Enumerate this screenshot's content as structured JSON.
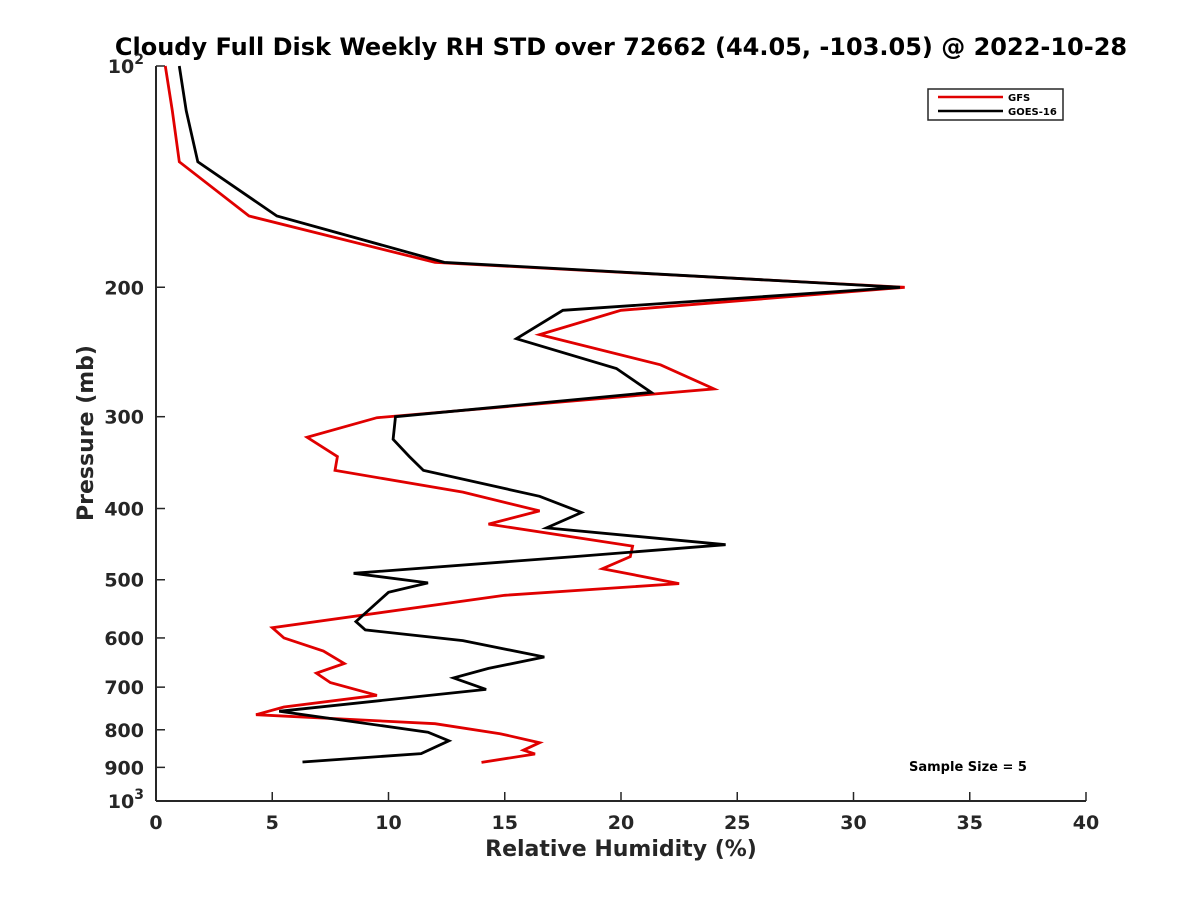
{
  "chart_data": {
    "type": "line",
    "title": "Cloudy Full Disk Weekly RH STD over 72662 (44.05, -103.05) @ 2022-10-28",
    "xlabel": "Relative Humidity (%)",
    "ylabel": "Pressure (mb)",
    "xlim": [
      0,
      40
    ],
    "ylim": [
      100,
      1000
    ],
    "y_scale": "log",
    "y_reversed": true,
    "grid": false,
    "legend_position": "top-right",
    "x_ticks": [
      0,
      5,
      10,
      15,
      20,
      25,
      30,
      35,
      40
    ],
    "y_ticks": [
      {
        "value": 100,
        "label": "10",
        "sup": "2"
      },
      {
        "value": 200,
        "label": "200",
        "sup": ""
      },
      {
        "value": 300,
        "label": "300",
        "sup": ""
      },
      {
        "value": 400,
        "label": "400",
        "sup": ""
      },
      {
        "value": 500,
        "label": "500",
        "sup": ""
      },
      {
        "value": 600,
        "label": "600",
        "sup": ""
      },
      {
        "value": 700,
        "label": "700",
        "sup": ""
      },
      {
        "value": 800,
        "label": "800",
        "sup": ""
      },
      {
        "value": 900,
        "label": "900",
        "sup": ""
      },
      {
        "value": 1000,
        "label": "10",
        "sup": "3"
      }
    ],
    "series": [
      {
        "name": "GFS",
        "color": "#e00000",
        "points": [
          [
            0.4,
            100
          ],
          [
            0.7,
            115
          ],
          [
            1.0,
            135
          ],
          [
            4.0,
            160
          ],
          [
            12.0,
            185
          ],
          [
            32.2,
            200
          ],
          [
            20.0,
            215
          ],
          [
            16.5,
            232
          ],
          [
            21.7,
            255
          ],
          [
            24.0,
            275
          ],
          [
            9.5,
            301
          ],
          [
            6.5,
            320
          ],
          [
            7.8,
            340
          ],
          [
            7.7,
            355
          ],
          [
            13.2,
            380
          ],
          [
            16.5,
            403
          ],
          [
            14.3,
            420
          ],
          [
            20.5,
            450
          ],
          [
            20.4,
            465
          ],
          [
            19.2,
            483
          ],
          [
            22.5,
            506
          ],
          [
            15.0,
            525
          ],
          [
            5.0,
            581
          ],
          [
            5.5,
            600
          ],
          [
            7.2,
            625
          ],
          [
            8.1,
            650
          ],
          [
            6.9,
            670
          ],
          [
            7.5,
            690
          ],
          [
            9.5,
            718
          ],
          [
            5.5,
            745
          ],
          [
            4.3,
            763
          ],
          [
            12.0,
            785
          ],
          [
            14.8,
            810
          ],
          [
            16.5,
            833
          ],
          [
            15.8,
            853
          ],
          [
            16.3,
            863
          ],
          [
            14.0,
            886
          ]
        ]
      },
      {
        "name": "GOES-16",
        "color": "#000000",
        "points": [
          [
            1.0,
            100
          ],
          [
            1.3,
            115
          ],
          [
            1.8,
            135
          ],
          [
            5.2,
            160
          ],
          [
            12.4,
            185
          ],
          [
            32.0,
            200
          ],
          [
            17.5,
            215
          ],
          [
            15.5,
            235
          ],
          [
            19.8,
            258
          ],
          [
            21.3,
            278
          ],
          [
            10.3,
            300
          ],
          [
            10.2,
            322
          ],
          [
            10.9,
            340
          ],
          [
            11.5,
            355
          ],
          [
            16.5,
            385
          ],
          [
            18.3,
            405
          ],
          [
            16.8,
            425
          ],
          [
            24.5,
            448
          ],
          [
            18.0,
            465
          ],
          [
            8.5,
            490
          ],
          [
            11.7,
            505
          ],
          [
            10.0,
            520
          ],
          [
            8.6,
            570
          ],
          [
            9.0,
            585
          ],
          [
            13.2,
            605
          ],
          [
            16.7,
            637
          ],
          [
            14.3,
            660
          ],
          [
            12.8,
            680
          ],
          [
            14.2,
            705
          ],
          [
            5.3,
            755
          ],
          [
            11.7,
            806
          ],
          [
            12.6,
            828
          ],
          [
            11.4,
            862
          ],
          [
            6.3,
            885
          ]
        ]
      }
    ],
    "annotations": [
      {
        "text": "Sample Size = 5"
      }
    ]
  }
}
